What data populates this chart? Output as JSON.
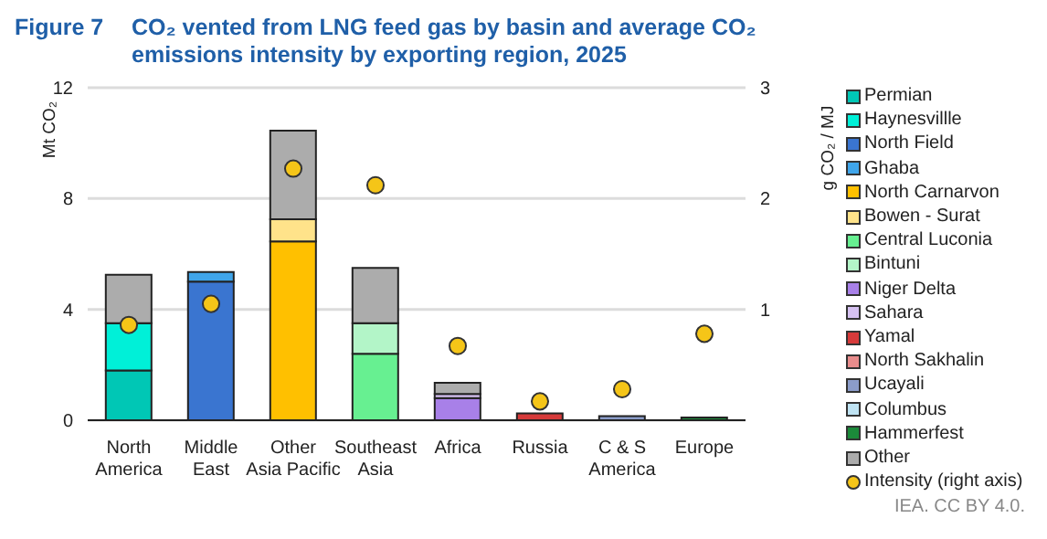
{
  "chart_data": {
    "type": "bar",
    "stacked": true,
    "title": "CO₂ vented from LNG feed gas by basin and average CO₂ emissions intensity by exporting region, 2025",
    "ylabel": "Mt CO₂",
    "y2label": "g CO₂ / MJ",
    "categories": [
      "North America",
      "Middle East",
      "Other Asia Pacific",
      "Southeast Asia",
      "Africa",
      "Russia",
      "C & S America",
      "Europe"
    ],
    "ylim": [
      0,
      12
    ],
    "yticks": [
      0,
      4,
      8,
      12
    ],
    "y2lim": [
      0,
      3
    ],
    "y2ticks": [
      1,
      2,
      3
    ],
    "grid": "y",
    "legend": "right",
    "series": [
      {
        "name": "Permian",
        "color": "#00c7b5",
        "values": [
          1.8,
          null,
          null,
          null,
          null,
          null,
          null,
          null
        ]
      },
      {
        "name": "Haynesvillle",
        "color": "#00f0d8",
        "values": [
          1.7,
          null,
          null,
          null,
          null,
          null,
          null,
          null
        ]
      },
      {
        "name": "North Field",
        "color": "#3a75d0",
        "values": [
          null,
          5.0,
          null,
          null,
          null,
          null,
          null,
          null
        ]
      },
      {
        "name": "Ghaba",
        "color": "#3fa5ea",
        "values": [
          null,
          0.35,
          null,
          null,
          null,
          null,
          null,
          null
        ]
      },
      {
        "name": "North Carnarvon",
        "color": "#ffc000",
        "values": [
          null,
          null,
          6.45,
          null,
          null,
          null,
          null,
          null
        ]
      },
      {
        "name": "Bowen - Surat",
        "color": "#ffe38a",
        "values": [
          null,
          null,
          0.8,
          null,
          null,
          null,
          null,
          null
        ]
      },
      {
        "name": "Central Luconia",
        "color": "#67f091",
        "values": [
          null,
          null,
          null,
          2.4,
          null,
          null,
          null,
          null
        ]
      },
      {
        "name": "Bintuni",
        "color": "#b3f5c8",
        "values": [
          null,
          null,
          null,
          1.1,
          null,
          null,
          null,
          null
        ]
      },
      {
        "name": "Niger Delta",
        "color": "#a880e8",
        "values": [
          null,
          null,
          null,
          null,
          0.8,
          null,
          null,
          null
        ]
      },
      {
        "name": "Sahara",
        "color": "#d6c2f2",
        "values": [
          null,
          null,
          null,
          null,
          0.15,
          null,
          null,
          null
        ]
      },
      {
        "name": "Yamal",
        "color": "#d63a3a",
        "values": [
          null,
          null,
          null,
          null,
          null,
          0.25,
          null,
          null
        ]
      },
      {
        "name": "North Sakhalin",
        "color": "#e88c8c",
        "values": [
          null,
          null,
          null,
          null,
          null,
          null,
          null,
          null
        ]
      },
      {
        "name": "Ucayali",
        "color": "#8b9cc9",
        "values": [
          null,
          null,
          null,
          null,
          null,
          null,
          0.15,
          null
        ]
      },
      {
        "name": "Columbus",
        "color": "#bfe3f3",
        "values": [
          null,
          null,
          null,
          null,
          null,
          null,
          null,
          null
        ]
      },
      {
        "name": "Hammerfest",
        "color": "#1b8a3a",
        "values": [
          null,
          null,
          null,
          null,
          null,
          null,
          null,
          0.1
        ]
      },
      {
        "name": "Other",
        "color": "#acacac",
        "values": [
          1.75,
          null,
          3.2,
          2.0,
          0.4,
          null,
          null,
          null
        ]
      },
      {
        "name": "Intensity (right axis)",
        "type": "scatter",
        "axis": "y2",
        "marker": "circle",
        "color": "#f5c518",
        "values": [
          0.86,
          1.05,
          2.27,
          2.12,
          0.67,
          0.17,
          0.28,
          0.78
        ]
      }
    ],
    "annotations": [
      "Figure 7",
      "IEA. CC BY 4.0."
    ]
  }
}
